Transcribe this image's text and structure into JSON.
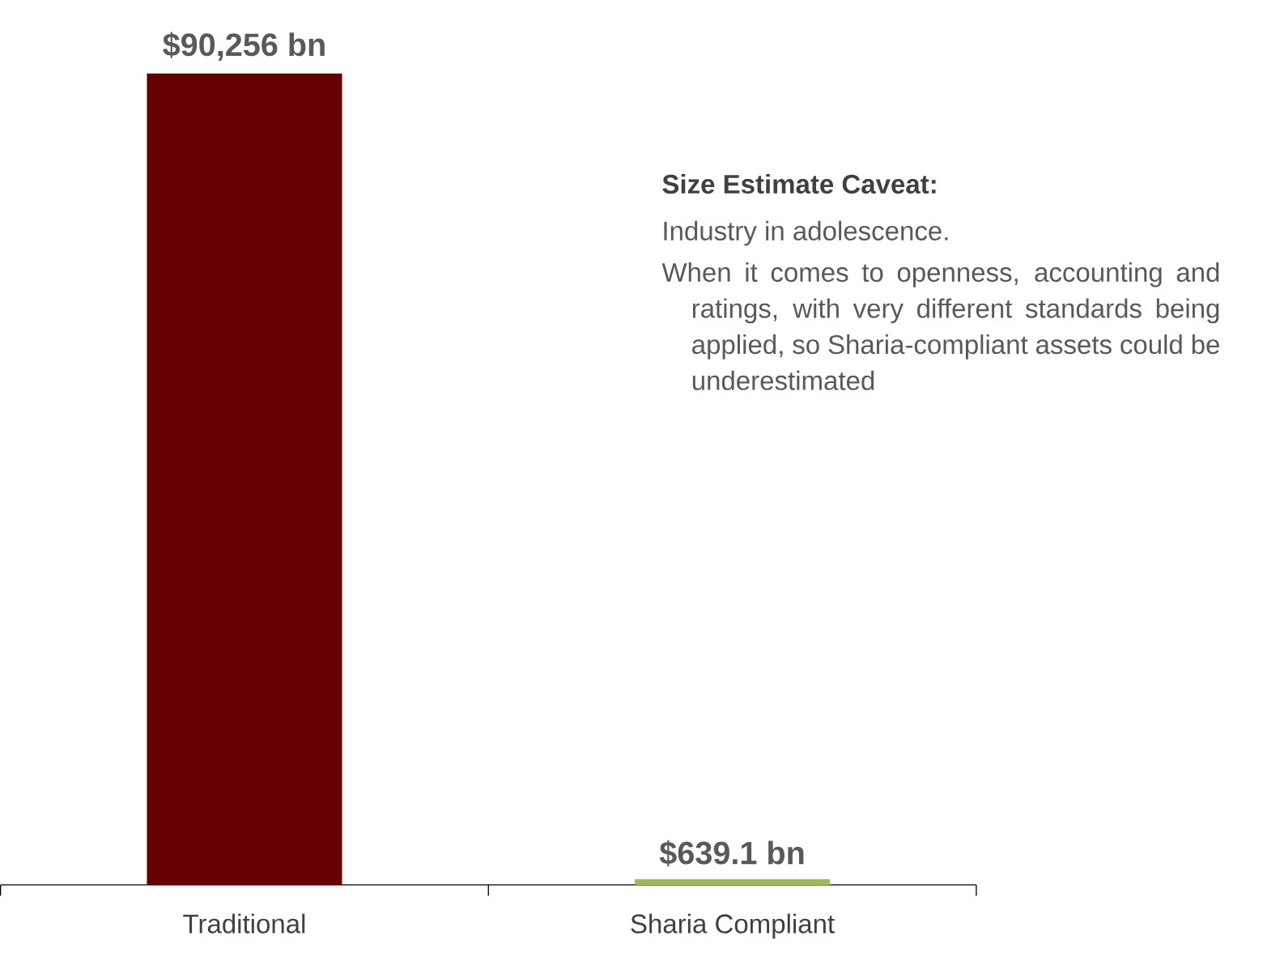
{
  "chart_data": {
    "type": "bar",
    "categories": [
      "Traditional",
      "Sharia Compliant"
    ],
    "values": [
      90256,
      639.1
    ],
    "colors": [
      "#660000",
      "#9bbb59"
    ],
    "value_labels": [
      "$90,256 bn",
      "$639.1 bn"
    ],
    "annotations": [
      "Size Estimate Caveat:",
      "Industry in adolescence.",
      "When it comes to openness, accounting and ratings, with very different standards being applied, so Sharia-compliant assets could be underestimated"
    ]
  }
}
